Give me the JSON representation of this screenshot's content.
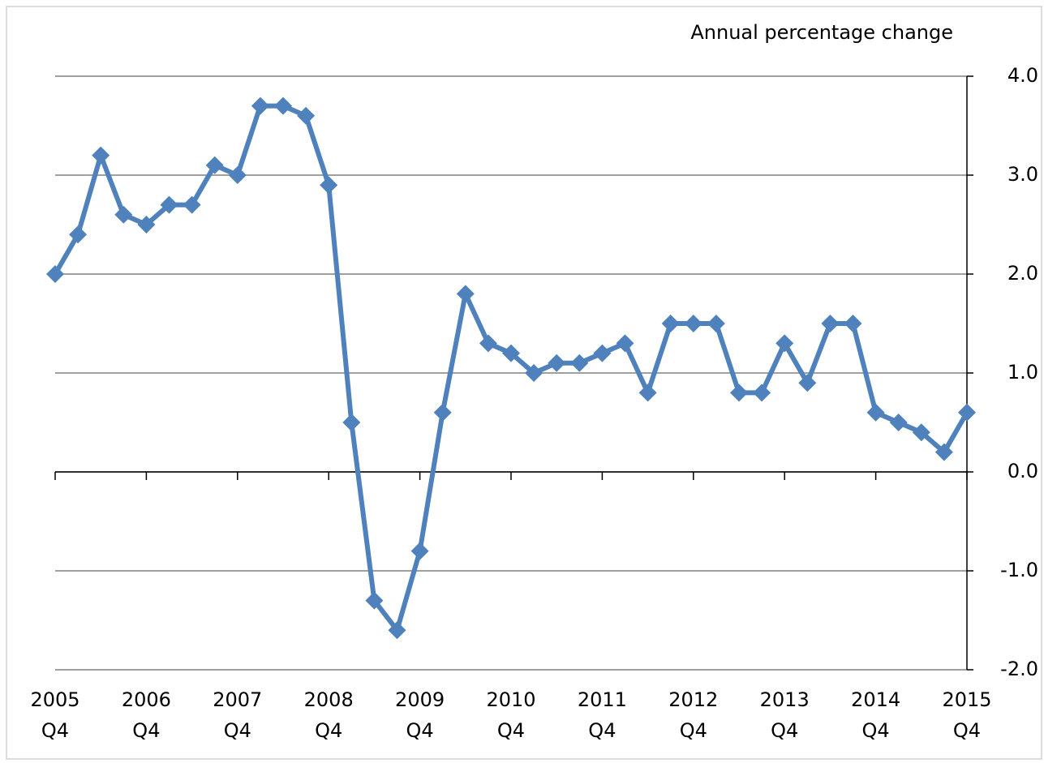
{
  "chart_data": {
    "type": "line",
    "y_axis_label": "Annual percentage change",
    "categories": [
      "2005\nQ4",
      null,
      null,
      null,
      "2006\nQ4",
      null,
      null,
      null,
      "2007\nQ4",
      null,
      null,
      null,
      "2008\nQ4",
      null,
      null,
      null,
      "2009\nQ4",
      null,
      null,
      null,
      "2010\nQ4",
      null,
      null,
      null,
      "2011\nQ4",
      null,
      null,
      null,
      "2012\nQ4",
      null,
      null,
      null,
      "2013\nQ4",
      null,
      null,
      null,
      "2014\nQ4",
      null,
      null,
      null,
      "2015\nQ4"
    ],
    "series": [
      {
        "name": "Annual percentage change",
        "color": "#4f81bd",
        "values": [
          2.0,
          2.4,
          3.2,
          2.6,
          2.5,
          2.7,
          2.7,
          3.1,
          3.0,
          3.7,
          3.7,
          3.6,
          2.9,
          0.5,
          -1.3,
          -1.6,
          -0.8,
          0.6,
          1.8,
          1.3,
          1.2,
          1.0,
          1.1,
          1.1,
          1.2,
          1.3,
          0.8,
          1.5,
          1.5,
          1.5,
          0.8,
          0.8,
          1.3,
          0.9,
          1.5,
          1.5,
          0.6,
          0.5,
          0.4,
          0.2,
          0.6
        ]
      }
    ],
    "ylim": [
      -2,
      4
    ],
    "yticks": [
      {
        "value": -2,
        "label": "-2.0"
      },
      {
        "value": -1,
        "label": "-1.0"
      },
      {
        "value": 0,
        "label": "0.0"
      },
      {
        "value": 1,
        "label": "1.0"
      },
      {
        "value": 2,
        "label": "2.0"
      },
      {
        "value": 3,
        "label": "3.0"
      },
      {
        "value": 4,
        "label": "4.0"
      }
    ],
    "grid": true
  }
}
